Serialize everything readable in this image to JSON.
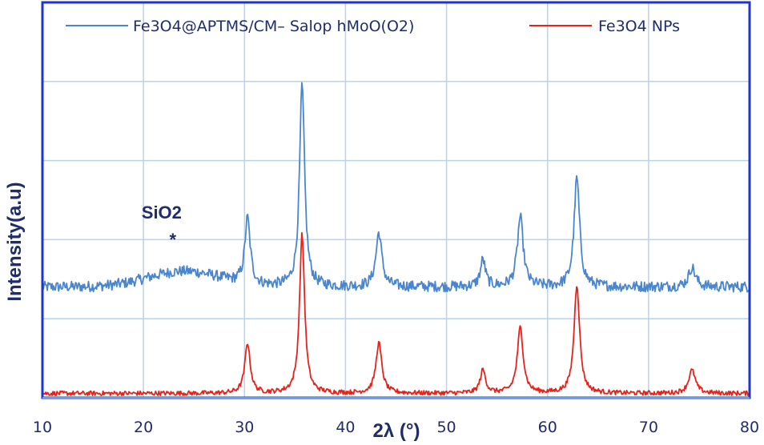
{
  "chart_data": {
    "type": "line",
    "xlabel": "2λ  (°)",
    "ylabel": "Intensity(a.u)",
    "xlim": [
      10,
      80
    ],
    "x_ticks": [
      10,
      20,
      30,
      40,
      50,
      60,
      70,
      80
    ],
    "grid": "vertical and horizontal, light blue",
    "legend_position": "top",
    "y_ticks_labeled": false,
    "series": [
      {
        "name": "Fe3O4@APTMS/CM– Salop hMoO(O2)",
        "color": "#4a86d0",
        "baseline": 0.28,
        "noise": 0.014,
        "peaks": [
          {
            "x": 30.3,
            "h": 0.17,
            "w": 0.32
          },
          {
            "x": 35.7,
            "h": 0.52,
            "w": 0.3
          },
          {
            "x": 43.3,
            "h": 0.14,
            "w": 0.35
          },
          {
            "x": 53.6,
            "h": 0.07,
            "w": 0.3
          },
          {
            "x": 57.3,
            "h": 0.18,
            "w": 0.35
          },
          {
            "x": 62.9,
            "h": 0.28,
            "w": 0.33
          },
          {
            "x": 74.3,
            "h": 0.05,
            "w": 0.4
          }
        ],
        "broad_hump": {
          "x": 24,
          "h": 0.04,
          "w": 5
        }
      },
      {
        "name": "Fe3O4 NPs",
        "color": "#e8221a",
        "baseline": 0.005,
        "noise": 0.006,
        "peaks": [
          {
            "x": 30.3,
            "h": 0.13,
            "w": 0.32
          },
          {
            "x": 35.7,
            "h": 0.41,
            "w": 0.3
          },
          {
            "x": 43.3,
            "h": 0.13,
            "w": 0.35
          },
          {
            "x": 53.6,
            "h": 0.06,
            "w": 0.32
          },
          {
            "x": 57.3,
            "h": 0.17,
            "w": 0.35
          },
          {
            "x": 62.9,
            "h": 0.28,
            "w": 0.33
          },
          {
            "x": 74.3,
            "h": 0.06,
            "w": 0.4
          }
        ],
        "broad_hump": {
          "x": 0,
          "h": 0,
          "w": 1
        }
      }
    ],
    "annotations": [
      {
        "text": "SiO2",
        "x": 21.8
      },
      {
        "text": "*",
        "x": 22.9
      }
    ]
  }
}
